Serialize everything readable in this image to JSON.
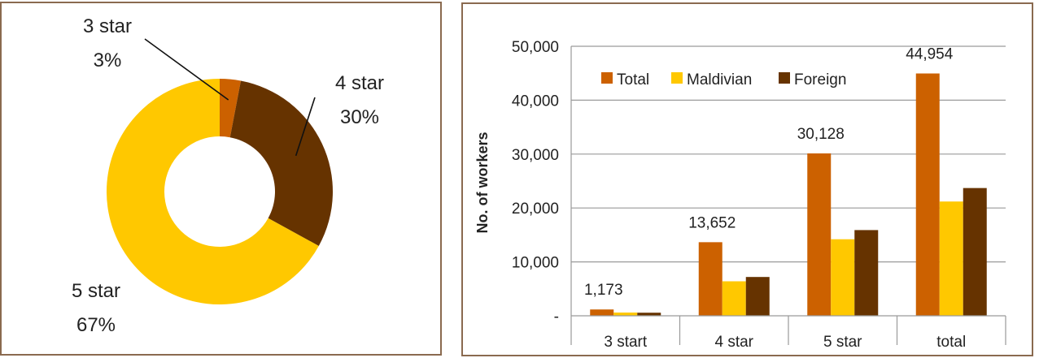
{
  "chart_data": [
    {
      "type": "pie",
      "style": "donut",
      "slices": [
        {
          "label": "3 star",
          "percent_label": "3%",
          "value": 3,
          "color": "#cc6100"
        },
        {
          "label": "4 star",
          "percent_label": "30%",
          "value": 30,
          "color": "#663300"
        },
        {
          "label": "5 star",
          "percent_label": "67%",
          "value": 67,
          "color": "#ffc800"
        }
      ]
    },
    {
      "type": "bar",
      "categories": [
        "3 start",
        "4 star",
        "5 star",
        "total"
      ],
      "series": [
        {
          "name": "Total",
          "color": "#cc6100",
          "values": [
            1173,
            13652,
            30128,
            44954
          ]
        },
        {
          "name": "Maldivian",
          "color": "#ffc800",
          "values": [
            600,
            6400,
            14200,
            21200
          ]
        },
        {
          "name": "Foreign",
          "color": "#663300",
          "values": [
            570,
            7200,
            15900,
            23700
          ]
        }
      ],
      "data_labels": [
        "1,173",
        "13,652",
        "30,128",
        "44,954"
      ],
      "ylabel": "No. of workers",
      "ylim": [
        0,
        50000
      ],
      "yticks": [
        0,
        10000,
        20000,
        30000,
        40000,
        50000
      ],
      "ytick_labels": [
        "-",
        "10,000",
        "20,000",
        "30,000",
        "40,000",
        "50,000"
      ],
      "grid": true,
      "legend_position": "top-left"
    }
  ]
}
